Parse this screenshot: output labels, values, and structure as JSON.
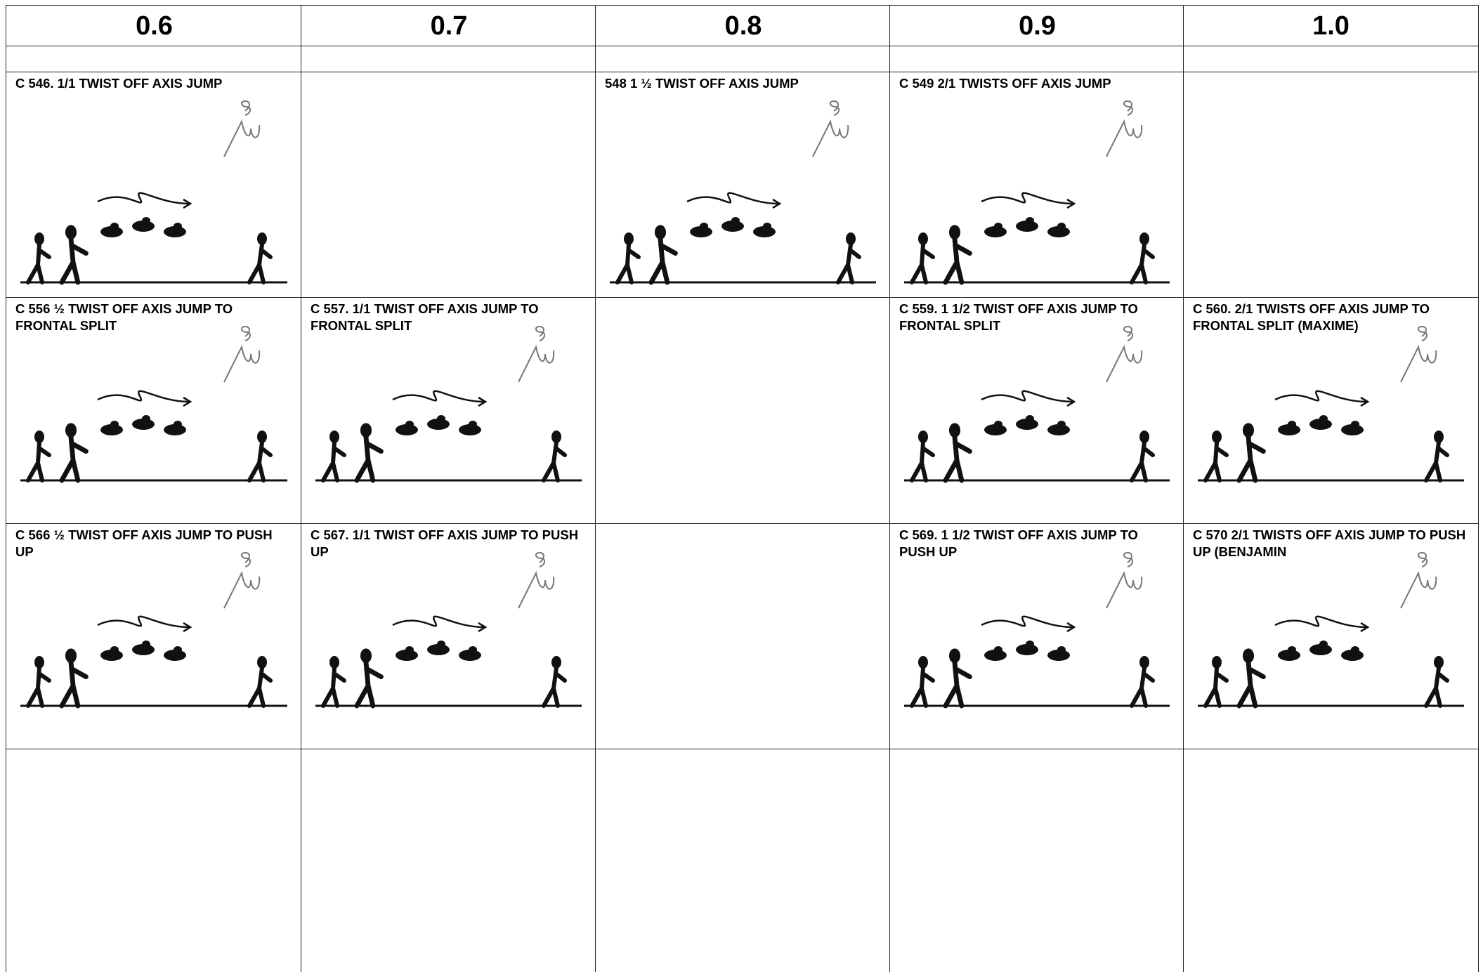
{
  "table": {
    "header": [
      "0.6",
      "0.7",
      "0.8",
      "0.9",
      "1.0"
    ],
    "rows": [
      [
        "C 546. 1/1 TWIST OFF AXIS JUMP",
        null,
        "548  1 ½ TWIST OFF AXIS JUMP",
        "C 549  2/1 TWISTS OFF AXIS JUMP",
        null
      ],
      [
        "C 556 ½ TWIST OFF AXIS JUMP TO FRONTAL SPLIT",
        "C 557. 1/1 TWIST OFF AXIS JUMP TO FRONTAL SPLIT",
        null,
        "C 559. 1 1/2 TWIST OFF AXIS JUMP TO FRONTAL SPLIT",
        "C 560. 2/1 TWISTS OFF AXIS JUMP TO FRONTAL SPLIT (MAXIME)"
      ],
      [
        "C 566 ½ TWIST OFF AXIS JUMP TO PUSH UP",
        "C 567. 1/1 TWIST OFF AXIS JUMP TO PUSH UP",
        null,
        "C 569.  1 1/2 TWIST OFF AXIS JUMP TO PUSH UP",
        "C 570  2/1 TWISTS OFF AXIS JUMP TO PUSH UP (BENJAMIN"
      ]
    ]
  }
}
